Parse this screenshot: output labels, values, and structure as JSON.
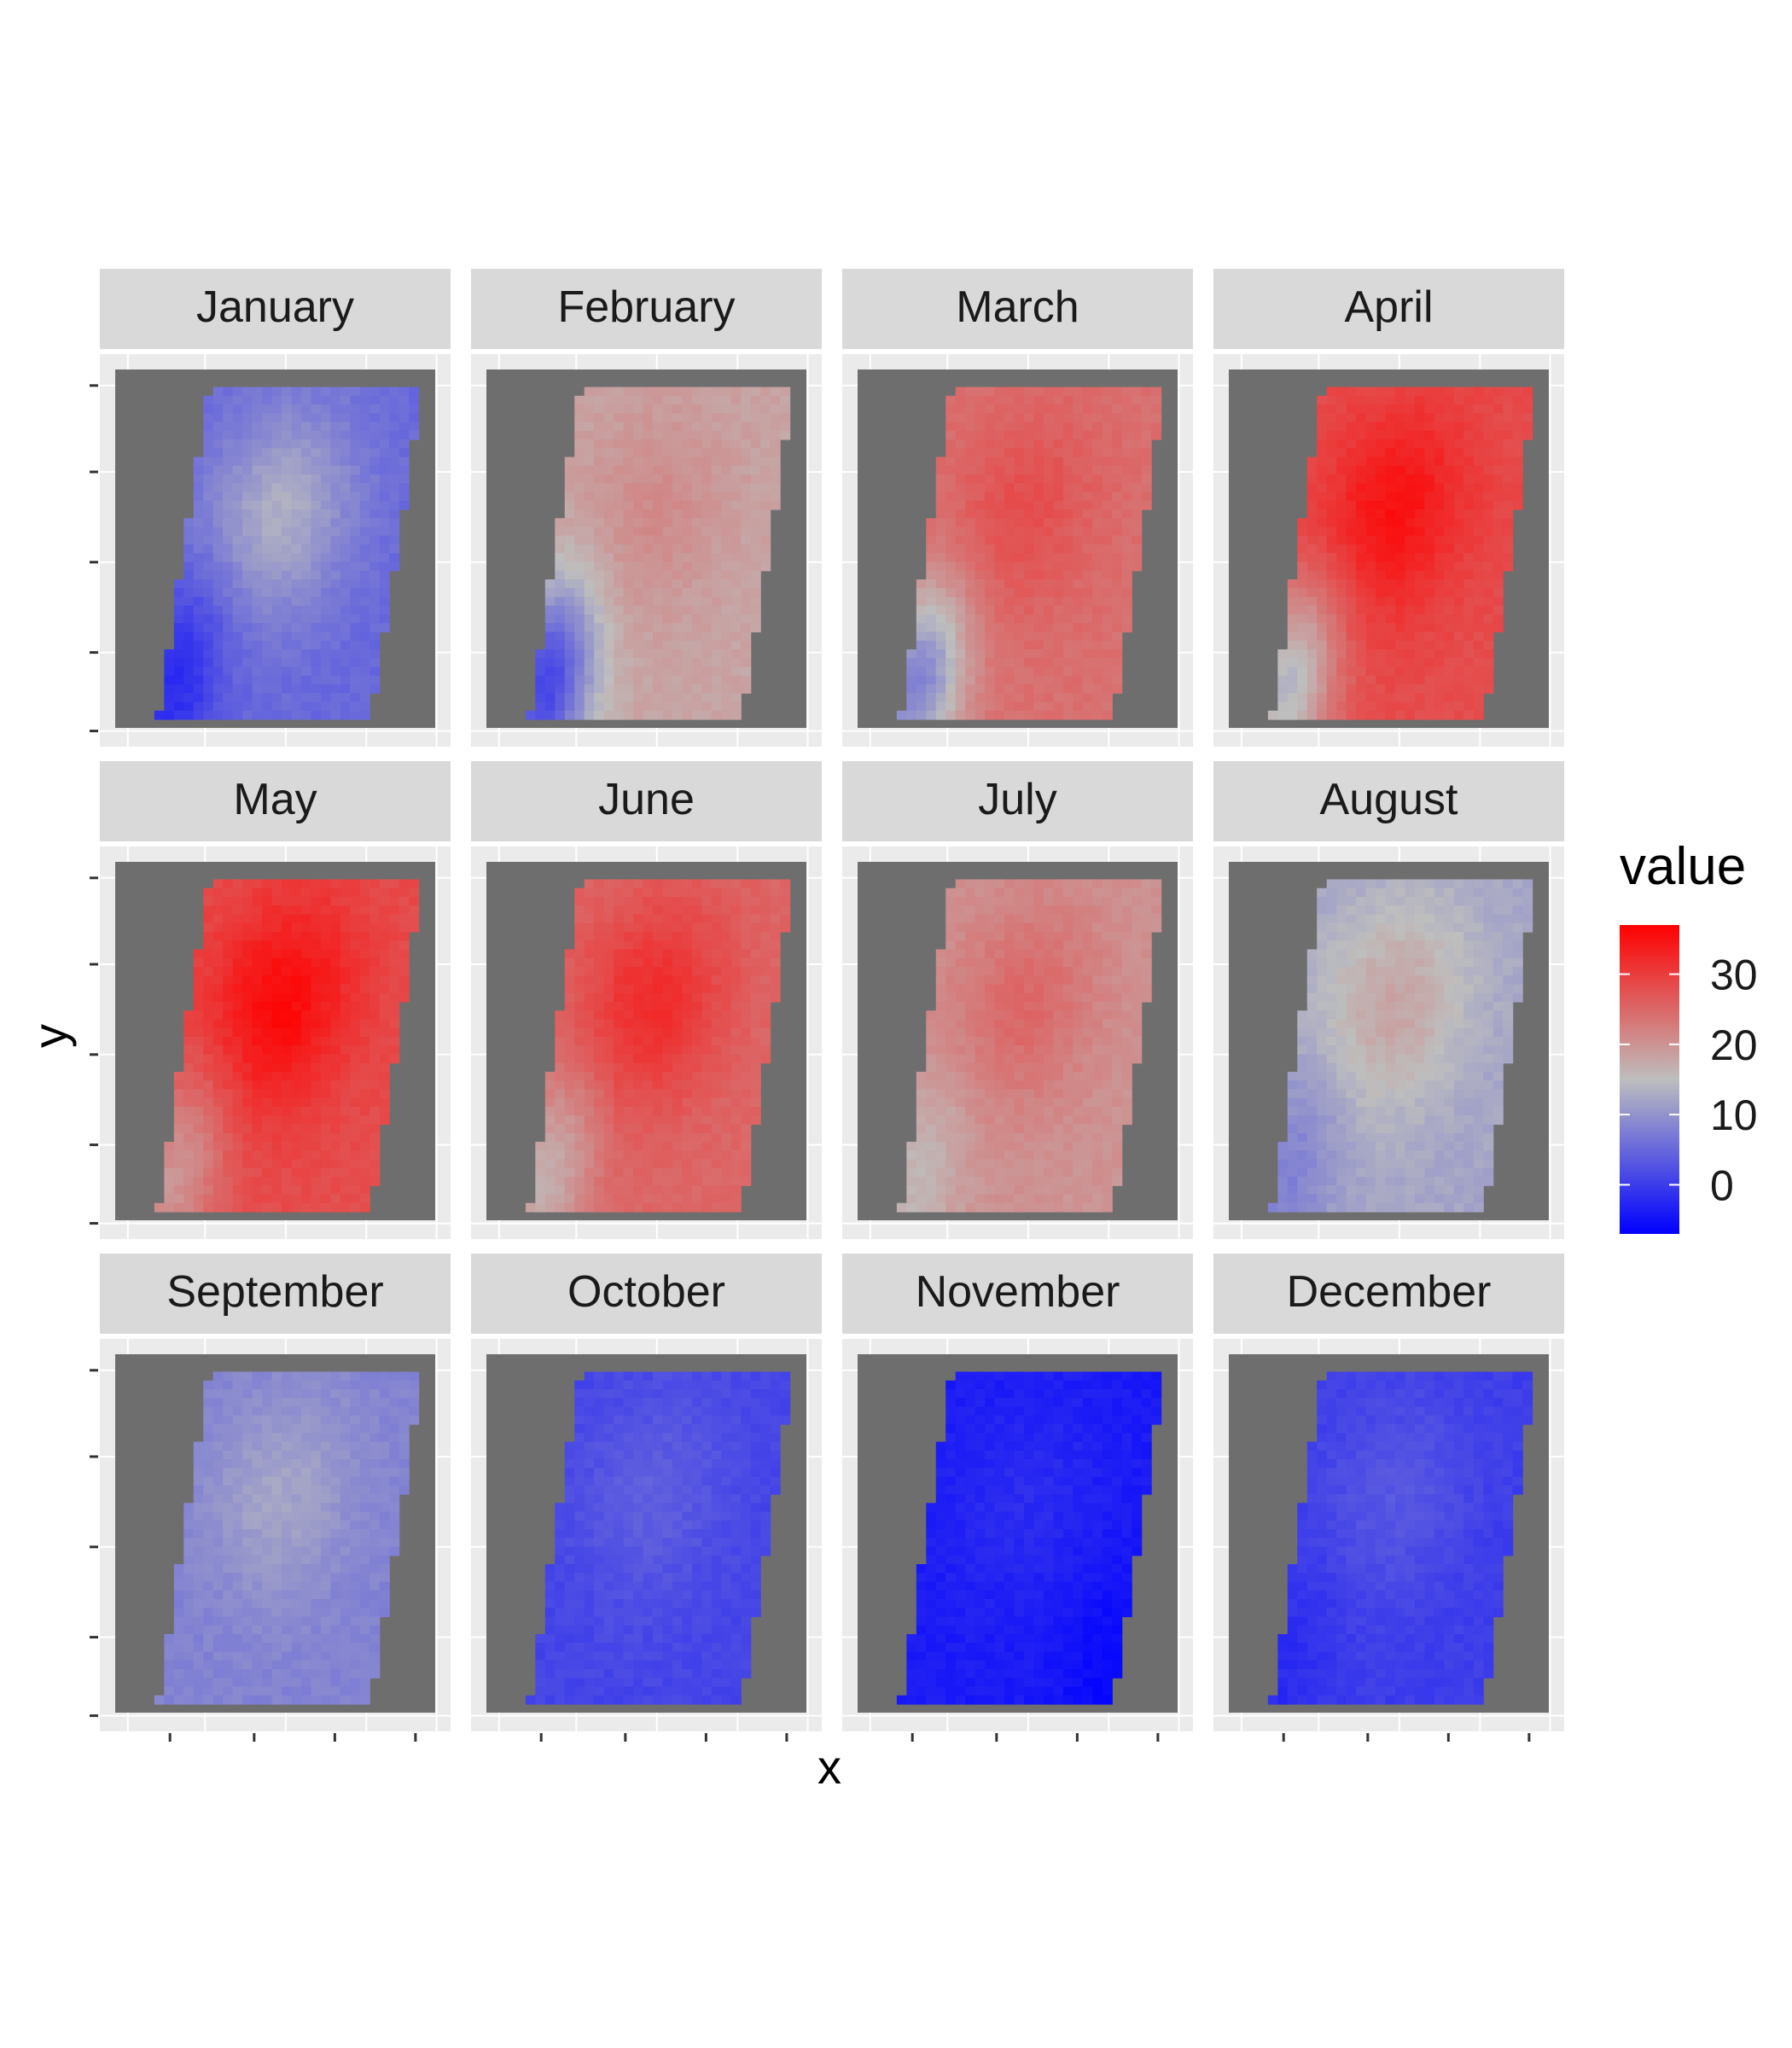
{
  "chart_data": {
    "type": "heatmap",
    "facets": [
      "January",
      "February",
      "March",
      "April",
      "May",
      "June",
      "July",
      "August",
      "September",
      "October",
      "November",
      "December"
    ],
    "xlabel": "x",
    "ylabel": "y",
    "legend": {
      "title": "value",
      "ticks": [
        0,
        10,
        20,
        30
      ],
      "range": [
        -7,
        37
      ],
      "placement": "right",
      "colors": {
        "low": "#0000FF",
        "mid": "#BEBEBE",
        "high": "#FF0000"
      },
      "midpoint": 15
    },
    "na_color": "#6E6E6E",
    "grid": true,
    "monthly_levels": {
      "January": {
        "bg": 5,
        "center": 13,
        "pocket": -2,
        "pocket_side": "lower-left"
      },
      "February": {
        "bg": 18,
        "center": 21,
        "pocket": 1,
        "pocket_side": "lower-left"
      },
      "March": {
        "bg": 24,
        "center": 28,
        "pocket": 8,
        "pocket_side": "lower-left"
      },
      "April": {
        "bg": 28,
        "center": 35,
        "pocket": 14,
        "pocket_side": "lower-left"
      },
      "May": {
        "bg": 28,
        "center": 36,
        "pocket": 20,
        "pocket_side": "lower-left"
      },
      "June": {
        "bg": 25,
        "center": 32,
        "pocket": 17,
        "pocket_side": "lower-left"
      },
      "July": {
        "bg": 20,
        "center": 25,
        "pocket": 16,
        "pocket_side": "lower-left"
      },
      "August": {
        "bg": 12,
        "center": 18,
        "pocket": 8,
        "pocket_side": "lower-left"
      },
      "September": {
        "bg": 8,
        "center": 12,
        "pocket": 8,
        "pocket_side": "lower-left"
      },
      "October": {
        "bg": 1,
        "center": 4,
        "pocket": 1,
        "pocket_side": "lower-left"
      },
      "November": {
        "bg": -4,
        "center": -2,
        "pocket": -6,
        "pocket_side": "lower-right"
      },
      "December": {
        "bg": 0,
        "center": 3,
        "pocket": -2,
        "pocket_side": "lower-left"
      }
    }
  }
}
